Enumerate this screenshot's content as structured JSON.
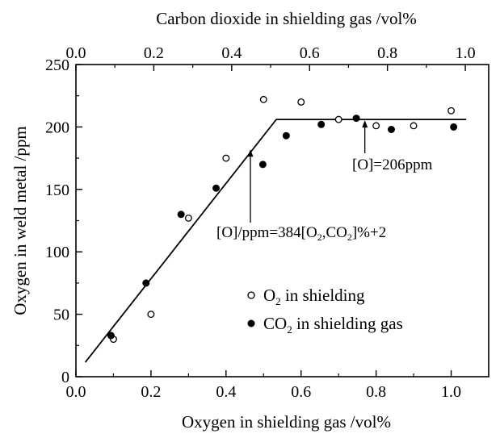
{
  "chart_data": {
    "type": "scatter",
    "title": "",
    "xlabel": "Oxygen in shielding gas   /vol%",
    "ylabel": "Oxygen in weld metal   /ppm",
    "x2label": "Carbon dioxide in shielding gas   /vol%",
    "xlim": [
      0.0,
      1.1
    ],
    "ylim": [
      0,
      250
    ],
    "x2lim": [
      0.0,
      1.06
    ],
    "x_ticks": [
      "0.0",
      "0.2",
      "0.4",
      "0.6",
      "0.8",
      "1.0"
    ],
    "y_ticks": [
      "0",
      "50",
      "100",
      "150",
      "200",
      "250"
    ],
    "x2_ticks": [
      "0.0",
      "0.2",
      "0.4",
      "0.6",
      "0.8",
      "1.0"
    ],
    "grid": false,
    "legend_position": "bottom-right",
    "series": [
      {
        "name": "O2 in shielding",
        "marker": "open-circle",
        "x_axis": "bottom",
        "points": [
          [
            0.1,
            30
          ],
          [
            0.2,
            50
          ],
          [
            0.3,
            127
          ],
          [
            0.4,
            175
          ],
          [
            0.5,
            222
          ],
          [
            0.6,
            220
          ],
          [
            0.7,
            206
          ],
          [
            0.8,
            201
          ],
          [
            0.9,
            201
          ],
          [
            1.0,
            213
          ]
        ]
      },
      {
        "name": "CO2 in shielding gas",
        "marker": "filled-circle",
        "x_axis": "top",
        "points": [
          [
            0.09,
            33
          ],
          [
            0.18,
            75
          ],
          [
            0.27,
            130
          ],
          [
            0.36,
            151
          ],
          [
            0.48,
            170
          ],
          [
            0.54,
            193
          ],
          [
            0.63,
            202
          ],
          [
            0.72,
            207
          ],
          [
            0.81,
            198
          ],
          [
            0.97,
            200
          ]
        ]
      }
    ],
    "fit_line": {
      "x": [
        0.025,
        0.534,
        1.04
      ],
      "y": [
        11.6,
        206,
        206
      ]
    },
    "annotations": [
      {
        "text": "[O]/ppm=384[O",
        "sub1": "2",
        "mid": ",CO",
        "sub2": "2",
        "end": "]%+2",
        "arrow_to": [
          0.465,
          182
        ]
      },
      {
        "text": "[O]=206ppm",
        "arrow_to": [
          0.77,
          206
        ]
      }
    ],
    "legend": [
      {
        "main": "O",
        "sub": "2",
        "rest": " in shielding"
      },
      {
        "main": "CO",
        "sub": "2",
        "rest": " in shielding gas"
      }
    ]
  }
}
